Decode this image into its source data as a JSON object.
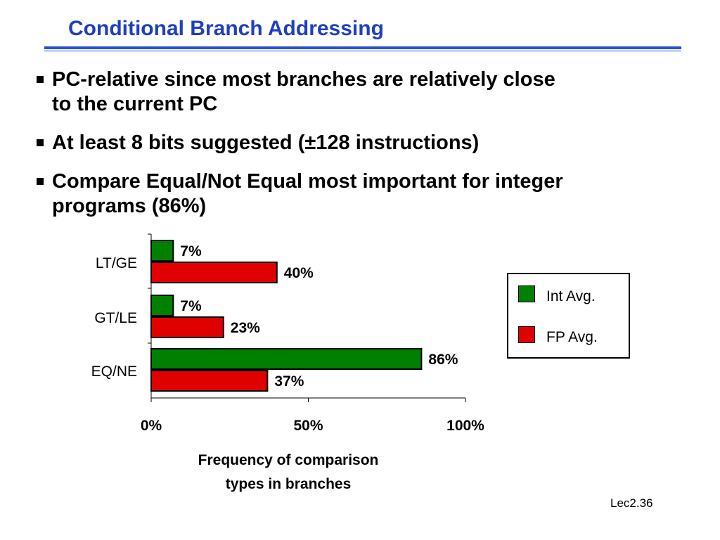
{
  "slide": {
    "title": "Conditional Branch Addressing",
    "slide_number": "Lec2.36"
  },
  "bullets": [
    {
      "line1": "PC-relative since most branches are relatively close",
      "line2": "to the current PC"
    },
    {
      "line1": "At least 8 bits suggested (±128 instructions)"
    },
    {
      "line1": "Compare Equal/Not Equal most important for integer",
      "line2": "programs (86%)"
    }
  ],
  "chart_data": {
    "type": "bar",
    "orientation": "horizontal",
    "categories": [
      "LT/GE",
      "GT/LE",
      "EQ/NE"
    ],
    "series": [
      {
        "name": "Int Avg.",
        "values": [
          7,
          7,
          86
        ],
        "labels": [
          "7%",
          "7%",
          "86%"
        ],
        "color": "#008000"
      },
      {
        "name": "FP Avg.",
        "values": [
          40,
          23,
          37
        ],
        "labels": [
          "40%",
          "23%",
          "37%"
        ],
        "color": "#e00000"
      }
    ],
    "xlim": [
      0,
      100
    ],
    "x_ticks": [
      0,
      50,
      100
    ],
    "x_tick_labels": [
      "0%",
      "50%",
      "100%"
    ],
    "xlabel_lines": [
      "Frequency of comparison",
      "types in branches"
    ],
    "grid": false,
    "legend_position": "right"
  }
}
